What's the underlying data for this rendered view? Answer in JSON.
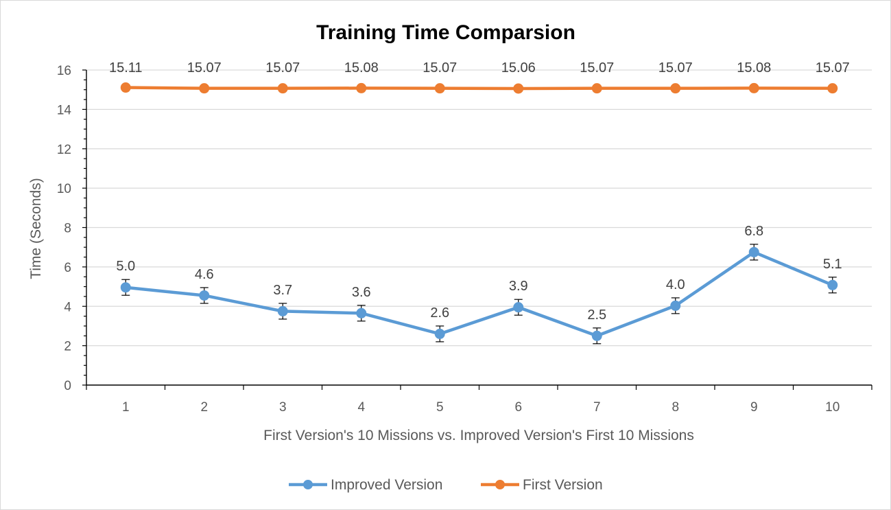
{
  "chart_data": {
    "type": "line",
    "title": "Training Time Comparsion",
    "xlabel": "First Version's 10 Missions vs. Improved Version's First 10 Missions",
    "ylabel": "Time (Seconds)",
    "categories": [
      "1",
      "2",
      "3",
      "4",
      "5",
      "6",
      "7",
      "8",
      "9",
      "10"
    ],
    "ylim": [
      0,
      16
    ],
    "yticks": [
      "0",
      "2",
      "4",
      "6",
      "8",
      "10",
      "12",
      "14",
      "16"
    ],
    "grid": true,
    "legend_position": "bottom",
    "series": [
      {
        "name": "Improved Version",
        "color": "#5B9BD5",
        "values": [
          4.96,
          4.55,
          3.75,
          3.65,
          2.6,
          3.95,
          2.5,
          4.03,
          6.75,
          5.08
        ],
        "labels": [
          "5.0",
          "4.6",
          "3.7",
          "3.6",
          "2.6",
          "3.9",
          "2.5",
          "4.0",
          "6.8",
          "5.1"
        ],
        "error": [
          0.4,
          0.4,
          0.4,
          0.4,
          0.4,
          0.4,
          0.4,
          0.4,
          0.4,
          0.4
        ]
      },
      {
        "name": "First Version",
        "color": "#ED7D31",
        "values": [
          15.11,
          15.07,
          15.07,
          15.08,
          15.07,
          15.06,
          15.07,
          15.07,
          15.08,
          15.07
        ],
        "labels": [
          "15.11",
          "15.07",
          "15.07",
          "15.08",
          "15.07",
          "15.06",
          "15.07",
          "15.07",
          "15.08",
          "15.07"
        ]
      }
    ]
  }
}
